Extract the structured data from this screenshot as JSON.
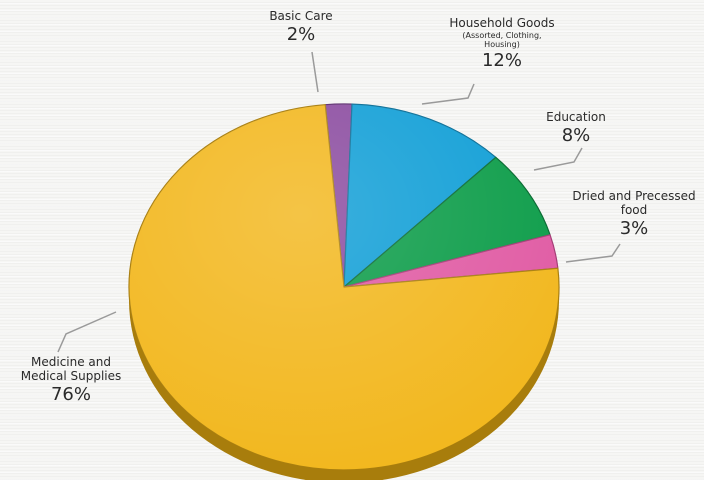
{
  "chart_data": {
    "type": "pie",
    "style": "3d",
    "title": "",
    "slices": [
      {
        "label": "Basic Care",
        "sublabel": "",
        "value": 2,
        "value_label": "2%",
        "color": "#8a4a9f",
        "side_color": "#5e2f70"
      },
      {
        "label": "Household Goods",
        "sublabel": "(Assorted, Clothing, Housing)",
        "value": 12,
        "value_label": "12%",
        "color": "#0f9ed6",
        "side_color": "#0a6f98"
      },
      {
        "label": "Education",
        "sublabel": "",
        "value": 8,
        "value_label": "8%",
        "color": "#0b9c48",
        "side_color": "#076b31"
      },
      {
        "label": "Dried and Precessed food",
        "sublabel": "",
        "value": 3,
        "value_label": "3%",
        "color": "#e05aa3",
        "side_color": "#a33a74"
      },
      {
        "label": "Medicine and Medical Supplies",
        "sublabel": "",
        "value": 76,
        "value_label": "76%",
        "color": "#f2b71d",
        "side_color": "#a87d0c"
      }
    ]
  }
}
